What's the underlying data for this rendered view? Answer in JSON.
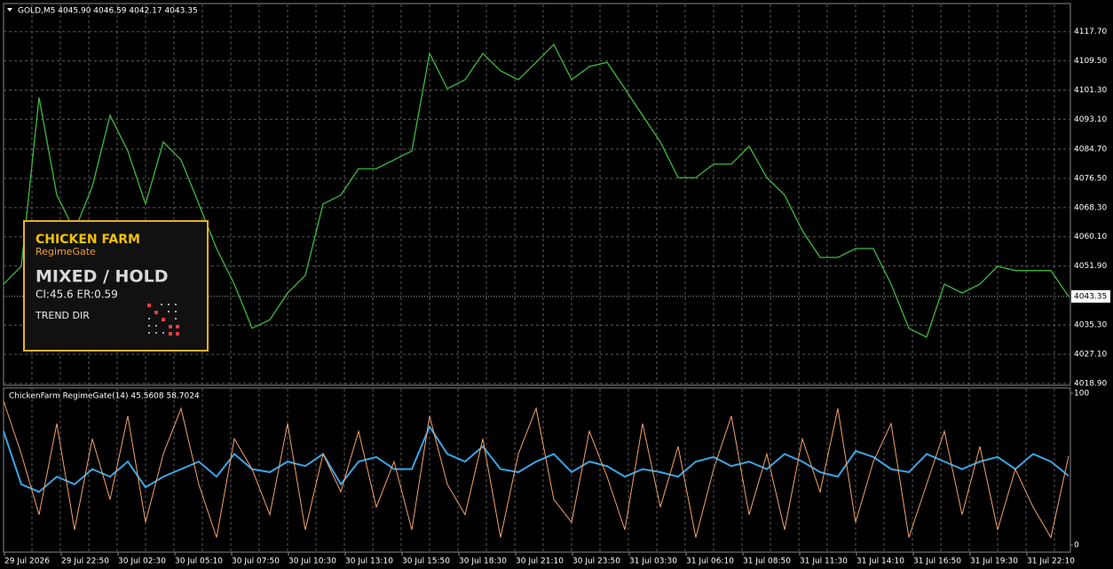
{
  "chart_data": [
    {
      "type": "line",
      "title": "GOLD,M5  4045.90 4046.59 4042.17 4043.35",
      "color": "#3dbb3d",
      "grid": true,
      "values": [
        4046.8,
        4051.8,
        4099.2,
        4071.8,
        4061.8,
        4074.2,
        4094.2,
        4084.2,
        4069.3,
        4086.7,
        4081.7,
        4069.3,
        4056.8,
        4046.8,
        4034.4,
        4036.8,
        4044.3,
        4049.3,
        4069.3,
        4071.8,
        4079.2,
        4079.2,
        4081.7,
        4084.2,
        4111.6,
        4101.7,
        4104.2,
        4111.6,
        4106.7,
        4104.2,
        4109.1,
        4114.1,
        4104.2,
        4107.9,
        4109.1,
        4101.7,
        4094.2,
        4086.7,
        4076.7,
        4076.7,
        4080.5,
        4080.5,
        4085.5,
        4076.7,
        4071.8,
        4061.8,
        4054.3,
        4054.3,
        4056.8,
        4056.8,
        4046.8,
        4034.4,
        4031.9,
        4046.8,
        4044.3,
        4046.8,
        4051.8,
        4050.6,
        4050.6,
        4050.6,
        4043.35
      ],
      "ylim": [
        4018.4,
        4125.6
      ],
      "yticks": [
        {
          "value": 4018.9,
          "label": "4018.90"
        },
        {
          "value": 4027.1,
          "label": "4027.10"
        },
        {
          "value": 4035.3,
          "label": "4035.30"
        },
        {
          "value": 4051.9,
          "label": "4051.90"
        },
        {
          "value": 4060.1,
          "label": "4060.10"
        },
        {
          "value": 4068.3,
          "label": "4068.30"
        },
        {
          "value": 4076.5,
          "label": "4076.50"
        },
        {
          "value": 4084.7,
          "label": "4084.70"
        },
        {
          "value": 4093.1,
          "label": "4093.10"
        },
        {
          "value": 4101.3,
          "label": "4101.30"
        },
        {
          "value": 4109.5,
          "label": "4109.50"
        },
        {
          "value": 4117.7,
          "label": "4117.70"
        }
      ],
      "current_label": {
        "value": 4043.35,
        "label": "4043.35"
      }
    },
    {
      "type": "line",
      "title": "ChickenFarm RegimeGate(14) 45.5608 58.7024",
      "grid": true,
      "ylim": [
        0,
        100
      ],
      "yticks": [
        0,
        100
      ],
      "series": [
        {
          "name": "CI",
          "color": "#3aa6e6",
          "values": [
            75,
            40,
            35,
            45,
            40,
            50,
            45,
            55,
            38,
            45,
            50,
            55,
            45,
            60,
            50,
            48,
            55,
            52,
            60,
            40,
            55,
            58,
            50,
            50,
            78,
            60,
            55,
            65,
            50,
            48,
            55,
            60,
            48,
            55,
            52,
            45,
            50,
            48,
            45,
            55,
            58,
            52,
            55,
            50,
            60,
            55,
            48,
            45,
            62,
            58,
            50,
            48,
            60,
            55,
            50,
            55,
            58,
            50,
            60,
            55,
            45.5608
          ]
        },
        {
          "name": "ER",
          "color": "#f3a36a",
          "values": [
            95,
            60,
            20,
            80,
            10,
            70,
            30,
            85,
            15,
            60,
            90,
            40,
            5,
            70,
            50,
            20,
            80,
            10,
            60,
            35,
            75,
            25,
            55,
            10,
            85,
            40,
            20,
            70,
            5,
            60,
            90,
            30,
            15,
            75,
            45,
            10,
            80,
            25,
            65,
            5,
            50,
            85,
            20,
            60,
            10,
            70,
            35,
            90,
            15,
            55,
            80,
            5,
            40,
            75,
            20,
            65,
            10,
            50,
            25,
            5,
            58.7024
          ]
        }
      ]
    }
  ],
  "time_axis": [
    "29 Jul 2026",
    "29 Jul 22:50",
    "30 Jul 02:30",
    "30 Jul 05:10",
    "30 Jul 07:50",
    "30 Jul 10:30",
    "30 Jul 13:10",
    "30 Jul 15:50",
    "30 Jul 18:30",
    "30 Jul 21:10",
    "30 Jul 23:50",
    "31 Jul 03:30",
    "31 Jul 06:10",
    "31 Jul 08:50",
    "31 Jul 11:30",
    "31 Jul 14:10",
    "31 Jul 16:50",
    "31 Jul 19:30",
    "31 Jul 22:10"
  ],
  "panel": {
    "title": "CHICKEN FARM",
    "subtitle": "RegimeGate",
    "state": "MIXED / HOLD",
    "metrics": "CI:45.6  ER:0.59",
    "label": "TREND DIR"
  }
}
